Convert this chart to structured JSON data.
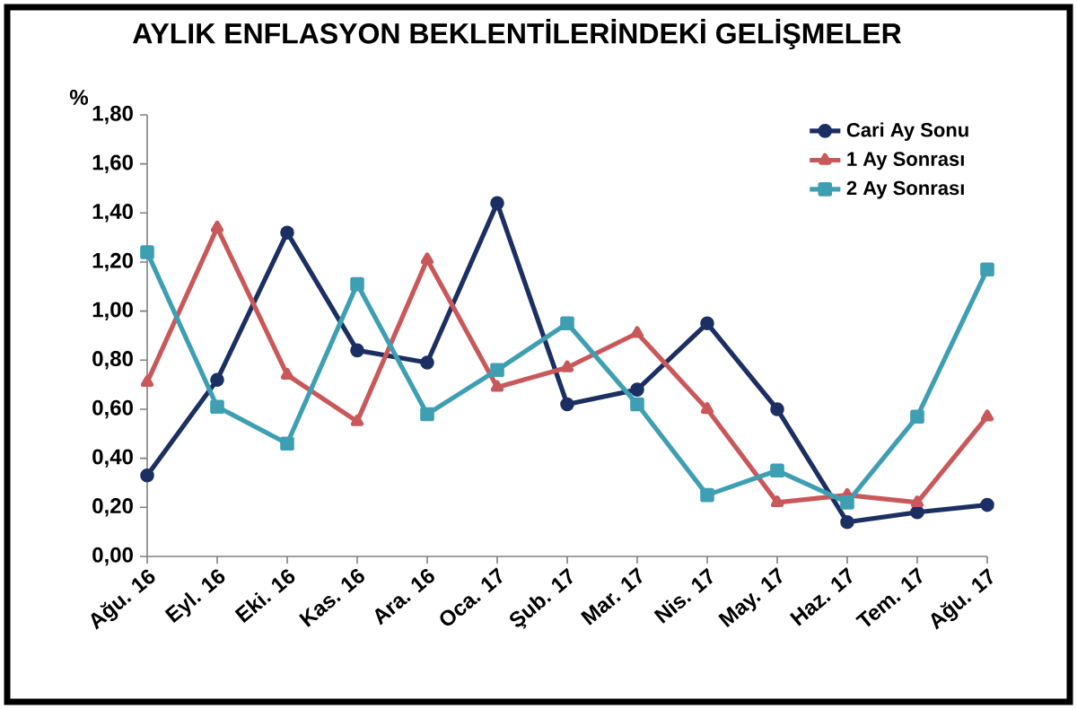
{
  "chart_data": {
    "type": "line",
    "title": "AYLIK ENFLASYON BEKLENTİLERİNDEKİ GELİŞMELER",
    "ylabel": "%",
    "categories": [
      "Ağu. 16",
      "Eyl. 16",
      "Eki. 16",
      "Kas. 16",
      "Ara. 16",
      "Oca. 17",
      "Şub. 17",
      "Mar. 17",
      "Nis. 17",
      "May. 17",
      "Haz. 17",
      "Tem. 17",
      "Ağu. 17"
    ],
    "series": [
      {
        "name": "Cari Ay Sonu",
        "color": "#1b2f62",
        "marker": "circle",
        "values": [
          0.33,
          0.72,
          1.32,
          0.84,
          0.79,
          1.44,
          0.62,
          0.68,
          0.95,
          0.6,
          0.14,
          0.18,
          0.21
        ]
      },
      {
        "name": "1 Ay Sonrası",
        "color": "#c9585a",
        "marker": "triangle",
        "values": [
          0.71,
          1.34,
          0.74,
          0.55,
          1.21,
          0.69,
          0.77,
          0.91,
          0.6,
          0.22,
          0.25,
          0.22,
          0.57
        ]
      },
      {
        "name": "2 Ay Sonrası",
        "color": "#3e9fb3",
        "marker": "square",
        "values": [
          1.24,
          0.61,
          0.46,
          1.11,
          0.58,
          0.76,
          0.95,
          0.62,
          0.25,
          0.35,
          0.22,
          0.57,
          1.17
        ]
      }
    ],
    "ylim": [
      0,
      1.8
    ],
    "yticks": [
      {
        "value": 0,
        "label": "0,00"
      },
      {
        "value": 0.2,
        "label": "0,20"
      },
      {
        "value": 0.4,
        "label": "0,40"
      },
      {
        "value": 0.6,
        "label": "0,60"
      },
      {
        "value": 0.8,
        "label": "0,80"
      },
      {
        "value": 1.0,
        "label": "1,00"
      },
      {
        "value": 1.2,
        "label": "1,20"
      },
      {
        "value": 1.4,
        "label": "1,40"
      },
      {
        "value": 1.6,
        "label": "1,60"
      },
      {
        "value": 1.8,
        "label": "1,80"
      }
    ],
    "grid": false,
    "legend": "top right",
    "line_style": "solid"
  }
}
